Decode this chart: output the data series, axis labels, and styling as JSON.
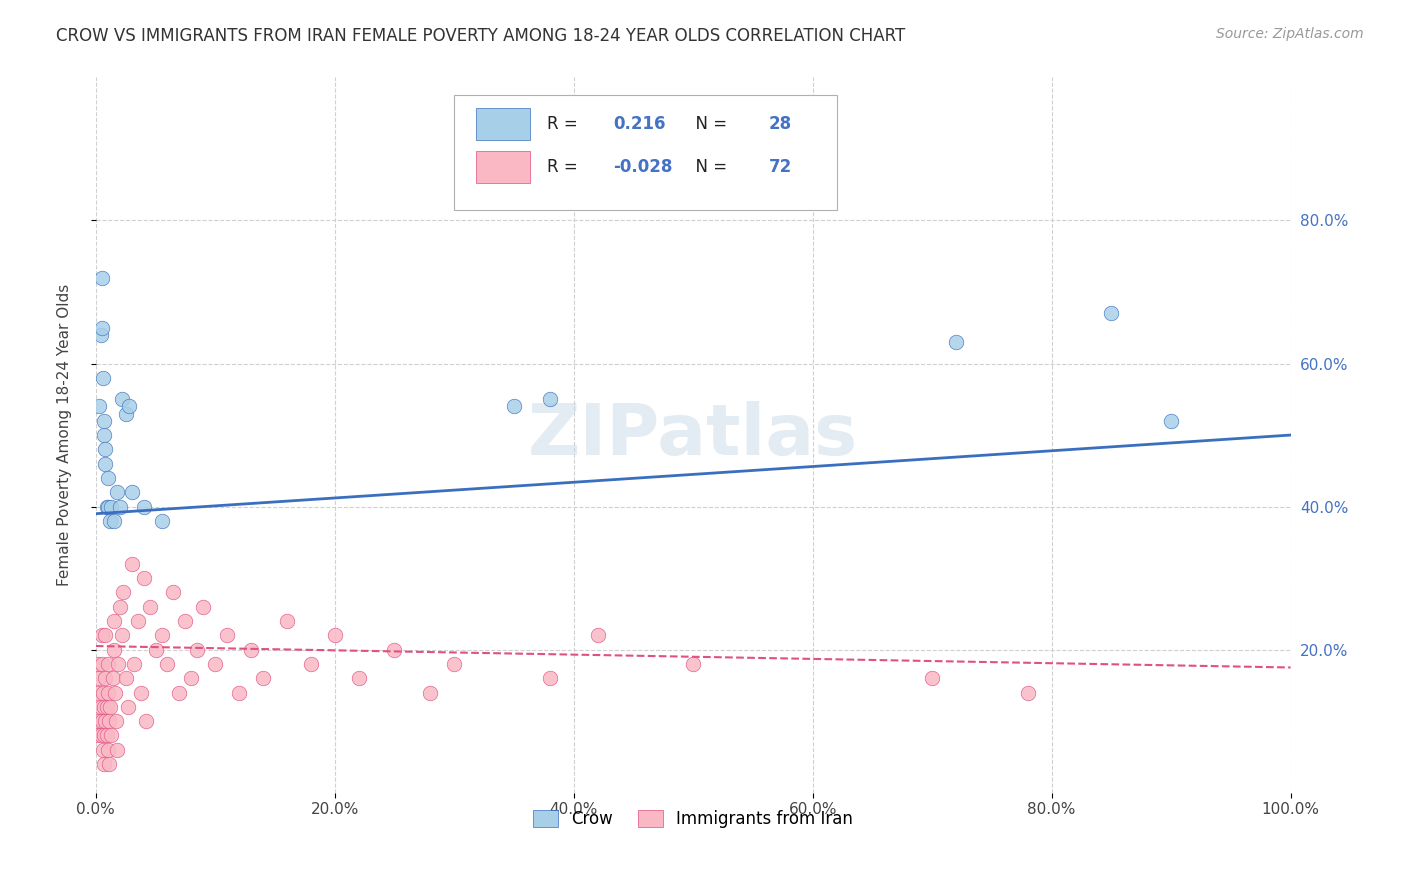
{
  "title": "CROW VS IMMIGRANTS FROM IRAN FEMALE POVERTY AMONG 18-24 YEAR OLDS CORRELATION CHART",
  "source": "Source: ZipAtlas.com",
  "ylabel": "Female Poverty Among 18-24 Year Olds",
  "xlim": [
    0,
    1.0
  ],
  "ylim": [
    0,
    1.0
  ],
  "xtick_labels": [
    "0.0%",
    "20.0%",
    "40.0%",
    "60.0%",
    "80.0%",
    "100.0%"
  ],
  "xtick_vals": [
    0.0,
    0.2,
    0.4,
    0.6,
    0.8,
    1.0
  ],
  "ytick_labels": [
    "20.0%",
    "40.0%",
    "60.0%",
    "80.0%"
  ],
  "ytick_vals": [
    0.2,
    0.4,
    0.6,
    0.8
  ],
  "crow_color": "#a8cfe8",
  "iran_color": "#f9b8c4",
  "crow_line_color": "#3a6fbf",
  "iran_line_color": "#e05080",
  "crow_R": "0.216",
  "crow_N": "28",
  "iran_R": "-0.028",
  "iran_N": "72",
  "legend_label_crow": "Crow",
  "legend_label_iran": "Immigrants from Iran",
  "watermark": "ZIPatlas",
  "background_color": "#ffffff",
  "grid_color": "#d0d0d0",
  "label_color": "#4472c4",
  "crow_scatter_x": [
    0.003,
    0.004,
    0.005,
    0.005,
    0.006,
    0.007,
    0.007,
    0.008,
    0.008,
    0.009,
    0.01,
    0.01,
    0.012,
    0.013,
    0.015,
    0.018,
    0.02,
    0.022,
    0.025,
    0.028,
    0.03,
    0.04,
    0.055,
    0.35,
    0.38,
    0.72,
    0.85,
    0.9
  ],
  "crow_scatter_y": [
    0.54,
    0.64,
    0.65,
    0.72,
    0.58,
    0.5,
    0.52,
    0.48,
    0.46,
    0.4,
    0.44,
    0.4,
    0.38,
    0.4,
    0.38,
    0.42,
    0.4,
    0.55,
    0.53,
    0.54,
    0.42,
    0.4,
    0.38,
    0.54,
    0.55,
    0.63,
    0.67,
    0.52
  ],
  "iran_scatter_x": [
    0.001,
    0.002,
    0.002,
    0.003,
    0.003,
    0.004,
    0.004,
    0.005,
    0.005,
    0.005,
    0.006,
    0.006,
    0.007,
    0.007,
    0.007,
    0.008,
    0.008,
    0.008,
    0.009,
    0.009,
    0.01,
    0.01,
    0.01,
    0.011,
    0.011,
    0.012,
    0.013,
    0.014,
    0.015,
    0.015,
    0.016,
    0.017,
    0.018,
    0.019,
    0.02,
    0.022,
    0.023,
    0.025,
    0.027,
    0.03,
    0.032,
    0.035,
    0.038,
    0.04,
    0.042,
    0.045,
    0.05,
    0.055,
    0.06,
    0.065,
    0.07,
    0.075,
    0.08,
    0.085,
    0.09,
    0.1,
    0.11,
    0.12,
    0.13,
    0.14,
    0.16,
    0.18,
    0.2,
    0.22,
    0.25,
    0.28,
    0.3,
    0.38,
    0.42,
    0.5,
    0.7,
    0.78
  ],
  "iran_scatter_y": [
    0.08,
    0.14,
    0.18,
    0.1,
    0.16,
    0.12,
    0.08,
    0.22,
    0.18,
    0.1,
    0.14,
    0.06,
    0.12,
    0.08,
    0.04,
    0.1,
    0.16,
    0.22,
    0.12,
    0.08,
    0.18,
    0.14,
    0.06,
    0.1,
    0.04,
    0.12,
    0.08,
    0.16,
    0.2,
    0.24,
    0.14,
    0.1,
    0.06,
    0.18,
    0.26,
    0.22,
    0.28,
    0.16,
    0.12,
    0.32,
    0.18,
    0.24,
    0.14,
    0.3,
    0.1,
    0.26,
    0.2,
    0.22,
    0.18,
    0.28,
    0.14,
    0.24,
    0.16,
    0.2,
    0.26,
    0.18,
    0.22,
    0.14,
    0.2,
    0.16,
    0.24,
    0.18,
    0.22,
    0.16,
    0.2,
    0.14,
    0.18,
    0.16,
    0.22,
    0.18,
    0.16,
    0.14
  ]
}
